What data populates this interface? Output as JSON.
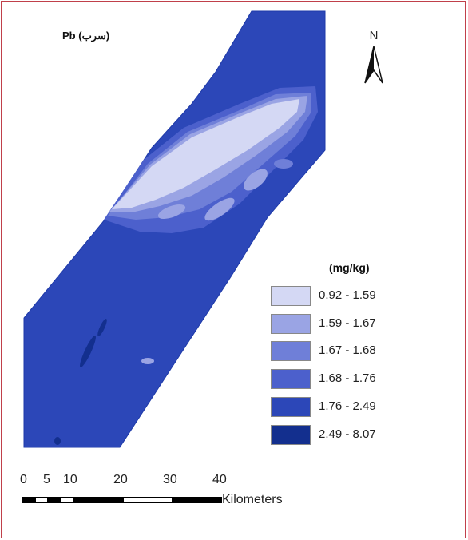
{
  "map": {
    "title": "Pb (سرب)",
    "north_label": "N",
    "legend": {
      "title": "(mg/kg)",
      "classes": [
        {
          "label": "0.92 - 1.59",
          "color": "#d4d8f4"
        },
        {
          "label": "1.59 - 1.67",
          "color": "#9aa4e4"
        },
        {
          "label": "1.67 - 1.68",
          "color": "#6f7fd8"
        },
        {
          "label": "1.68 - 1.76",
          "color": "#4c60cc"
        },
        {
          "label": "1.76 - 2.49",
          "color": "#2c47b8"
        },
        {
          "label": "2.49 - 8.07",
          "color": "#132f8e"
        }
      ]
    },
    "scale_bar": {
      "ticks": [
        "0",
        "5",
        "10",
        "20",
        "30",
        "40"
      ],
      "unit": "Kilometers"
    }
  }
}
